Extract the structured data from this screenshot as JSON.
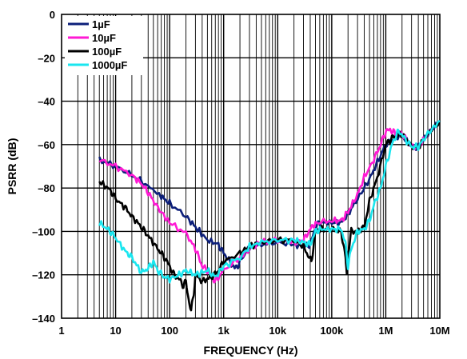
{
  "chart_data": {
    "type": "line",
    "xlabel": "FREQUENCY (Hz)",
    "ylabel": "PSRR (dB)",
    "xscale": "log",
    "xlim": [
      1,
      10000000
    ],
    "ylim": [
      -140,
      0
    ],
    "grid": true,
    "legend_position": "top-left",
    "x_ticks": [
      {
        "value": 1,
        "label": "1"
      },
      {
        "value": 10,
        "label": "10"
      },
      {
        "value": 100,
        "label": "100"
      },
      {
        "value": 1000,
        "label": "1k"
      },
      {
        "value": 10000,
        "label": "10k"
      },
      {
        "value": 100000,
        "label": "100k"
      },
      {
        "value": 1000000,
        "label": "1M"
      },
      {
        "value": 10000000,
        "label": "10M"
      }
    ],
    "y_ticks": [
      {
        "value": 0,
        "label": "0"
      },
      {
        "value": -20,
        "label": "–20"
      },
      {
        "value": -40,
        "label": "–40"
      },
      {
        "value": -60,
        "label": "–60"
      },
      {
        "value": -80,
        "label": "–80"
      },
      {
        "value": -100,
        "label": "–100"
      },
      {
        "value": -120,
        "label": "–120"
      },
      {
        "value": -140,
        "label": "–140"
      }
    ],
    "series": [
      {
        "name": "1µF",
        "color": "#0c1f7a",
        "points": [
          [
            5,
            -67
          ],
          [
            10,
            -70
          ],
          [
            20,
            -74
          ],
          [
            40,
            -79
          ],
          [
            70,
            -84
          ],
          [
            100,
            -87
          ],
          [
            200,
            -93
          ],
          [
            300,
            -98
          ],
          [
            500,
            -104
          ],
          [
            800,
            -106
          ],
          [
            1000,
            -110
          ],
          [
            1300,
            -114
          ],
          [
            1600,
            -117
          ],
          [
            1800,
            -116
          ],
          [
            2000,
            -114
          ],
          [
            3000,
            -107
          ],
          [
            5000,
            -106
          ],
          [
            10000,
            -105
          ],
          [
            20000,
            -106
          ],
          [
            30000,
            -107
          ],
          [
            40000,
            -106
          ],
          [
            50000,
            -98
          ],
          [
            60000,
            -96
          ],
          [
            100000,
            -96
          ],
          [
            150000,
            -96
          ],
          [
            200000,
            -92
          ],
          [
            300000,
            -85
          ],
          [
            500000,
            -76
          ],
          [
            700000,
            -68
          ],
          [
            1000000,
            -60
          ],
          [
            1300000,
            -58
          ],
          [
            1600000,
            -56
          ],
          [
            2000000,
            -56
          ],
          [
            3000000,
            -61
          ],
          [
            4000000,
            -61
          ],
          [
            6000000,
            -55
          ],
          [
            10000000,
            -49
          ]
        ]
      },
      {
        "name": "10µF",
        "color": "#ff1ad4",
        "points": [
          [
            5,
            -67
          ],
          [
            10,
            -70
          ],
          [
            20,
            -74
          ],
          [
            30,
            -78
          ],
          [
            40,
            -82
          ],
          [
            60,
            -89
          ],
          [
            100,
            -96
          ],
          [
            200,
            -101
          ],
          [
            300,
            -108
          ],
          [
            400,
            -116
          ],
          [
            500,
            -118
          ],
          [
            600,
            -121
          ],
          [
            700,
            -123
          ],
          [
            800,
            -121
          ],
          [
            1000,
            -118
          ],
          [
            2000,
            -112
          ],
          [
            3000,
            -108
          ],
          [
            5000,
            -105
          ],
          [
            10000,
            -104
          ],
          [
            20000,
            -105
          ],
          [
            30000,
            -104
          ],
          [
            40000,
            -99
          ],
          [
            50000,
            -96
          ],
          [
            100000,
            -95
          ],
          [
            150000,
            -95
          ],
          [
            200000,
            -91
          ],
          [
            300000,
            -83
          ],
          [
            400000,
            -75
          ],
          [
            600000,
            -67
          ],
          [
            800000,
            -60
          ],
          [
            1000000,
            -54
          ],
          [
            1200000,
            -53
          ],
          [
            1500000,
            -55
          ],
          [
            2000000,
            -55
          ],
          [
            3000000,
            -61
          ],
          [
            4000000,
            -61
          ],
          [
            6000000,
            -55
          ],
          [
            10000000,
            -49
          ]
        ]
      },
      {
        "name": "100µF",
        "color": "#000000",
        "points": [
          [
            5,
            -77
          ],
          [
            8,
            -81
          ],
          [
            10,
            -85
          ],
          [
            15,
            -89
          ],
          [
            20,
            -93
          ],
          [
            30,
            -98
          ],
          [
            40,
            -102
          ],
          [
            60,
            -108
          ],
          [
            80,
            -112
          ],
          [
            100,
            -116
          ],
          [
            120,
            -120
          ],
          [
            150,
            -122
          ],
          [
            180,
            -125
          ],
          [
            200,
            -123
          ],
          [
            220,
            -130
          ],
          [
            250,
            -137
          ],
          [
            280,
            -128
          ],
          [
            300,
            -120
          ],
          [
            400,
            -123
          ],
          [
            600,
            -121
          ],
          [
            800,
            -118
          ],
          [
            1000,
            -114
          ],
          [
            2000,
            -110
          ],
          [
            3000,
            -107
          ],
          [
            5000,
            -105
          ],
          [
            10000,
            -104
          ],
          [
            20000,
            -104
          ],
          [
            30000,
            -107
          ],
          [
            40000,
            -113
          ],
          [
            42000,
            -114
          ],
          [
            50000,
            -100
          ],
          [
            60000,
            -99
          ],
          [
            100000,
            -99
          ],
          [
            150000,
            -100
          ],
          [
            180000,
            -112
          ],
          [
            190000,
            -120
          ],
          [
            200000,
            -110
          ],
          [
            230000,
            -100
          ],
          [
            300000,
            -100
          ],
          [
            400000,
            -98
          ],
          [
            500000,
            -86
          ],
          [
            700000,
            -75
          ],
          [
            1000000,
            -60
          ],
          [
            1300000,
            -57
          ],
          [
            1600000,
            -56
          ],
          [
            2000000,
            -55
          ],
          [
            3000000,
            -61
          ],
          [
            4000000,
            -61
          ],
          [
            6000000,
            -55
          ],
          [
            10000000,
            -49
          ]
        ]
      },
      {
        "name": "1000µF",
        "color": "#1ae6ef",
        "points": [
          [
            5,
            -96
          ],
          [
            8,
            -100
          ],
          [
            10,
            -103
          ],
          [
            15,
            -109
          ],
          [
            20,
            -112
          ],
          [
            30,
            -119
          ],
          [
            40,
            -117
          ],
          [
            50,
            -114
          ],
          [
            60,
            -118
          ],
          [
            80,
            -121
          ],
          [
            100,
            -122
          ],
          [
            150,
            -120
          ],
          [
            200,
            -118
          ],
          [
            300,
            -120
          ],
          [
            500,
            -118
          ],
          [
            700,
            -121
          ],
          [
            1000,
            -116
          ],
          [
            2000,
            -112
          ],
          [
            3000,
            -107
          ],
          [
            5000,
            -105
          ],
          [
            10000,
            -104
          ],
          [
            20000,
            -104
          ],
          [
            30000,
            -105
          ],
          [
            40000,
            -106
          ],
          [
            50000,
            -100
          ],
          [
            60000,
            -99
          ],
          [
            100000,
            -99
          ],
          [
            150000,
            -99
          ],
          [
            180000,
            -106
          ],
          [
            200000,
            -116
          ],
          [
            230000,
            -108
          ],
          [
            300000,
            -100
          ],
          [
            400000,
            -99
          ],
          [
            500000,
            -95
          ],
          [
            600000,
            -88
          ],
          [
            800000,
            -80
          ],
          [
            1000000,
            -70
          ],
          [
            1300000,
            -60
          ],
          [
            1600000,
            -55
          ],
          [
            1800000,
            -54
          ],
          [
            2200000,
            -57
          ],
          [
            3000000,
            -61
          ],
          [
            4000000,
            -61
          ],
          [
            6000000,
            -55
          ],
          [
            10000000,
            -49
          ]
        ]
      }
    ]
  }
}
